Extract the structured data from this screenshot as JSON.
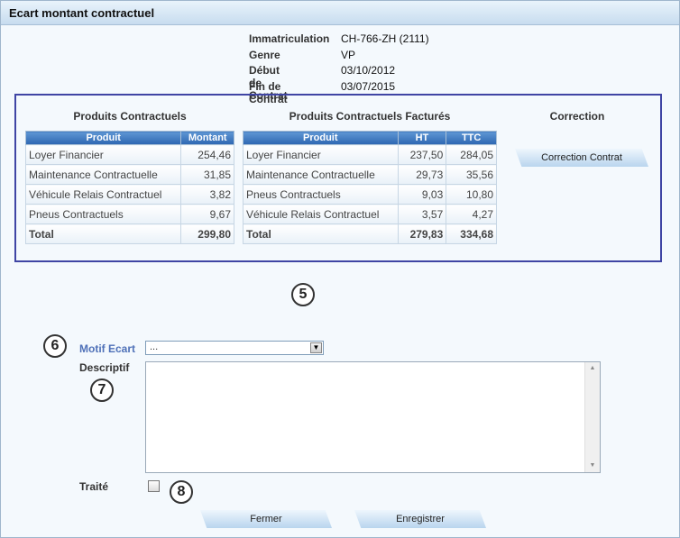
{
  "window": {
    "title": "Ecart montant contractuel"
  },
  "vehicle_info": [
    {
      "label": "Immatriculation",
      "value": "CH-766-ZH (2111)"
    },
    {
      "label": "Genre",
      "value": "VP"
    },
    {
      "label": "Début de Contrat",
      "value": "03/10/2012"
    },
    {
      "label": "Fin de Contrat",
      "value": "03/07/2015"
    }
  ],
  "contractuels": {
    "title": "Produits Contractuels",
    "headers": [
      "Produit",
      "Montant"
    ],
    "rows": [
      [
        "Loyer Financier",
        "254,46"
      ],
      [
        "Maintenance Contractuelle",
        "31,85"
      ],
      [
        "Véhicule Relais Contractuel",
        "3,82"
      ],
      [
        "Pneus Contractuels",
        "9,67"
      ]
    ],
    "total": [
      "Total",
      "299,80"
    ]
  },
  "factures": {
    "title": "Produits Contractuels Facturés",
    "headers": [
      "Produit",
      "HT",
      "TTC"
    ],
    "rows": [
      [
        "Loyer Financier",
        "237,50",
        "284,05"
      ],
      [
        "Maintenance Contractuelle",
        "29,73",
        "35,56"
      ],
      [
        "Pneus Contractuels",
        "9,03",
        "10,80"
      ],
      [
        "Véhicule Relais Contractuel",
        "3,57",
        "4,27"
      ]
    ],
    "total": [
      "Total",
      "279,83",
      "334,68"
    ]
  },
  "correction": {
    "title": "Correction",
    "button": "Correction Contrat"
  },
  "markers": {
    "m5": "5",
    "m6": "6",
    "m7": "7",
    "m8": "8"
  },
  "form": {
    "motif_label": "Motif Ecart",
    "motif_value": "...",
    "descriptif_label": "Descriptif",
    "traite_label": "Traité"
  },
  "buttons": {
    "fermer": "Fermer",
    "enregistrer": "Enregistrer"
  },
  "colors": {
    "panel_border": "#3f45a4",
    "header_blue": "#2e67b2",
    "label_blue": "#4f71b8"
  }
}
